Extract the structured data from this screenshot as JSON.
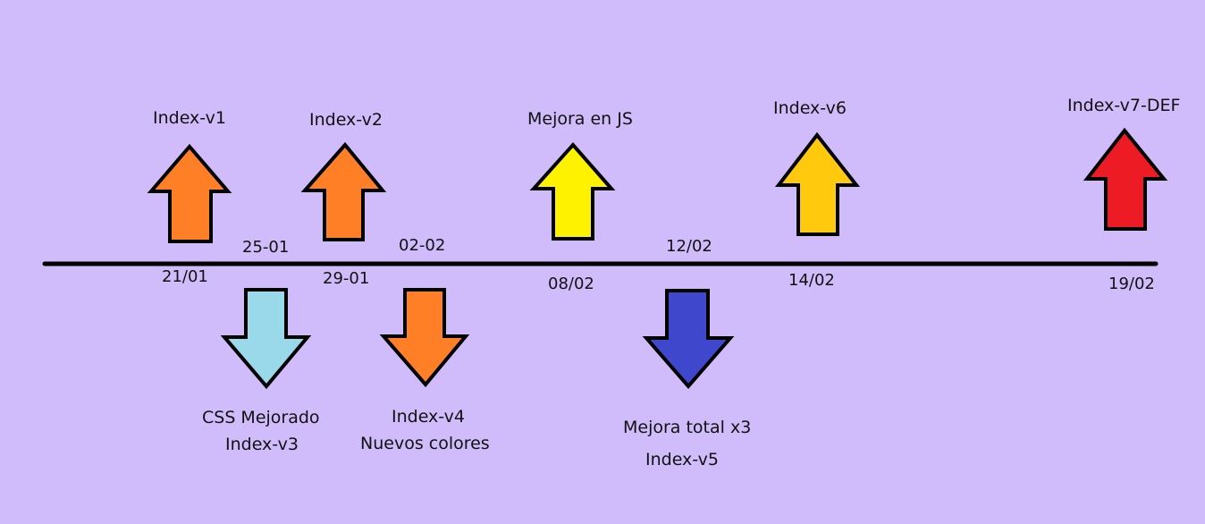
{
  "timeline": {
    "line_color": "#000000",
    "background": "#d0bcfa",
    "events": [
      {
        "id": "v1",
        "direction": "up",
        "color": "#ff7f27",
        "date": "21/01",
        "labels": [
          "Index-v1"
        ]
      },
      {
        "id": "v2",
        "direction": "up",
        "color": "#ff7f27",
        "date": "29-01",
        "labels": [
          "Index-v2"
        ]
      },
      {
        "id": "js",
        "direction": "up",
        "color": "#fff200",
        "date": "08/02",
        "labels": [
          "Mejora en JS"
        ]
      },
      {
        "id": "v6",
        "direction": "up",
        "color": "#ffc90e",
        "date": "14/02",
        "labels": [
          "Index-v6"
        ]
      },
      {
        "id": "v7",
        "direction": "up",
        "color": "#ed1c24",
        "date": "19/02",
        "labels": [
          "Index-v7-DEF"
        ]
      },
      {
        "id": "v3",
        "direction": "down",
        "color": "#99d9ea",
        "date": "25-01",
        "labels": [
          "CSS Mejorado",
          "Index-v3"
        ]
      },
      {
        "id": "v4",
        "direction": "down",
        "color": "#ff7f27",
        "date": "02-02",
        "labels": [
          "Index-v4",
          "Nuevos colores"
        ]
      },
      {
        "id": "v5",
        "direction": "down",
        "color": "#3f48cc",
        "date": "12/02",
        "labels": [
          "Mejora total x3",
          "Index-v5"
        ]
      }
    ]
  }
}
